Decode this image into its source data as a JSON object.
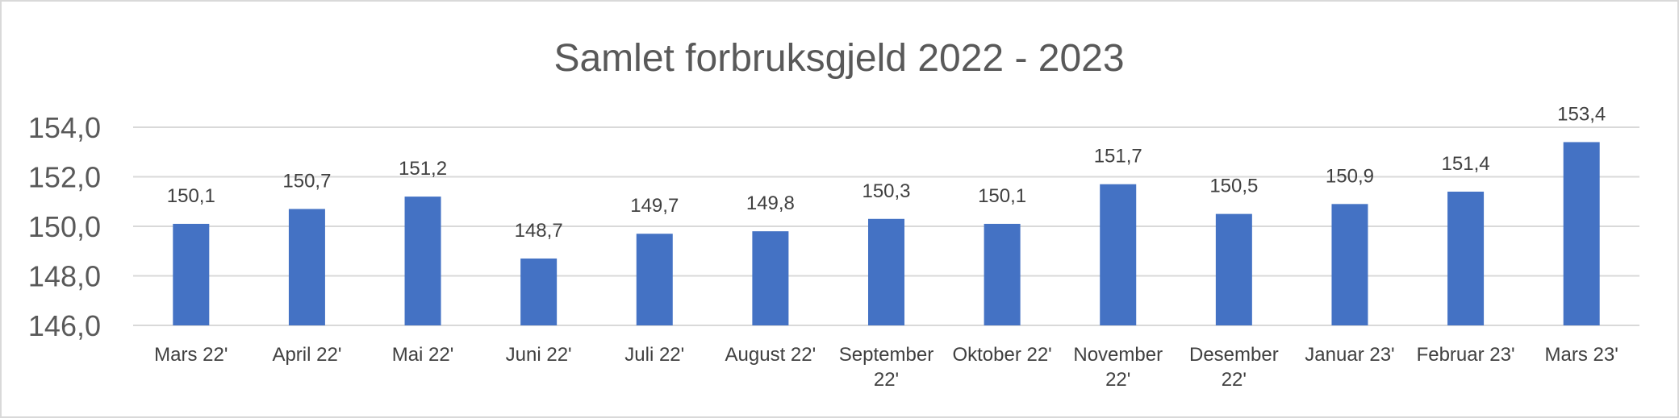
{
  "chart_data": {
    "type": "bar",
    "title": "Samlet forbruksgjeld 2022 - 2023",
    "xlabel": "",
    "ylabel": "",
    "categories": [
      [
        "Mars 22'"
      ],
      [
        "April 22'"
      ],
      [
        "Mai 22'"
      ],
      [
        "Juni 22'"
      ],
      [
        "Juli 22'"
      ],
      [
        "August 22'"
      ],
      [
        "September",
        "22'"
      ],
      [
        "Oktober 22'"
      ],
      [
        "November",
        "22'"
      ],
      [
        "Desember",
        "22'"
      ],
      [
        "Januar 23'"
      ],
      [
        "Februar 23'"
      ],
      [
        "Mars 23'"
      ]
    ],
    "values": [
      150.1,
      150.7,
      151.2,
      148.7,
      149.7,
      149.8,
      150.3,
      150.1,
      151.7,
      150.5,
      150.9,
      151.4,
      153.4
    ],
    "data_labels": [
      "150,1",
      "150,7",
      "151,2",
      "148,7",
      "149,7",
      "149,8",
      "150,3",
      "150,1",
      "151,7",
      "150,5",
      "150,9",
      "151,4",
      "153,4"
    ],
    "ylim": [
      146,
      154
    ],
    "yticks": [
      146,
      148,
      150,
      152,
      154
    ],
    "ytick_labels": [
      "146,0",
      "148,0",
      "150,0",
      "152,0",
      "154,0"
    ],
    "grid": true,
    "legend": "none",
    "bar_color": "#4472c4"
  }
}
